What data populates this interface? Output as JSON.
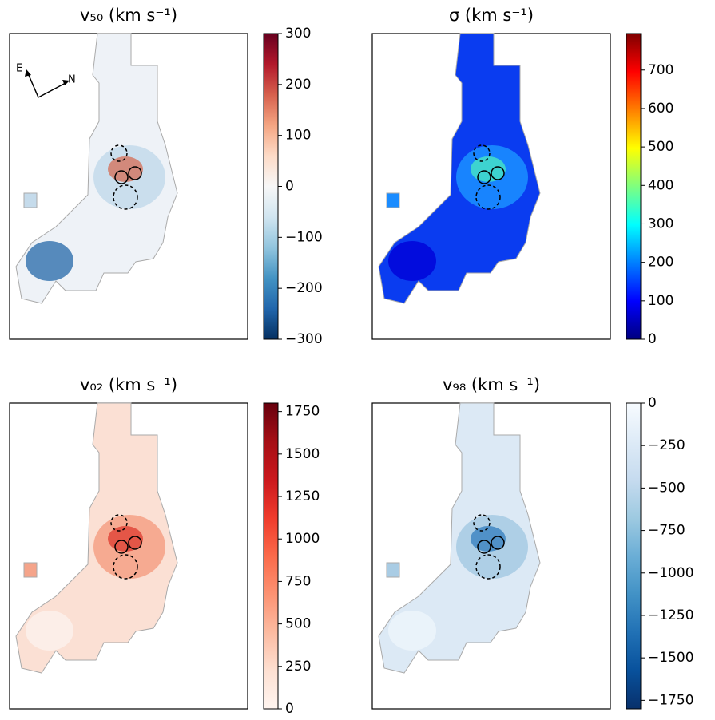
{
  "chart_data": [
    {
      "type": "heatmap",
      "title": "v₅₀ (km s⁻¹)",
      "colormap": "RdBu_r",
      "colorbar_lim": [
        -300,
        300
      ],
      "colorbar_ticks": [
        {
          "value": -300,
          "label": "−300"
        },
        {
          "value": -200,
          "label": "−200"
        },
        {
          "value": -100,
          "label": "−100"
        },
        0,
        100,
        200,
        300
      ],
      "annotations": [
        "E",
        "N"
      ]
    },
    {
      "type": "heatmap",
      "title": "σ (km s⁻¹)",
      "colormap": "jet",
      "colorbar_lim": [
        0,
        795
      ],
      "colorbar_ticks": [
        0,
        100,
        200,
        300,
        400,
        500,
        600,
        700
      ]
    },
    {
      "type": "heatmap",
      "title": "v₀₂ (km s⁻¹)",
      "colormap": "Reds",
      "colorbar_lim": [
        0,
        1800
      ],
      "colorbar_ticks": [
        0,
        250,
        500,
        750,
        1000,
        1250,
        1500,
        1750
      ]
    },
    {
      "type": "heatmap",
      "title": "v₉₈ (km s⁻¹)",
      "colormap": "Blues_r",
      "colorbar_lim": [
        -1800,
        0
      ],
      "colorbar_ticks": [
        0,
        {
          "value": -250,
          "label": "−250"
        },
        {
          "value": -500,
          "label": "−500"
        },
        {
          "value": -750,
          "label": "−750"
        },
        {
          "value": -1000,
          "label": "−1000"
        },
        {
          "value": -1250,
          "label": "−1250"
        },
        {
          "value": -1500,
          "label": "−1500"
        },
        {
          "value": -1750,
          "label": "−1750"
        }
      ]
    }
  ]
}
